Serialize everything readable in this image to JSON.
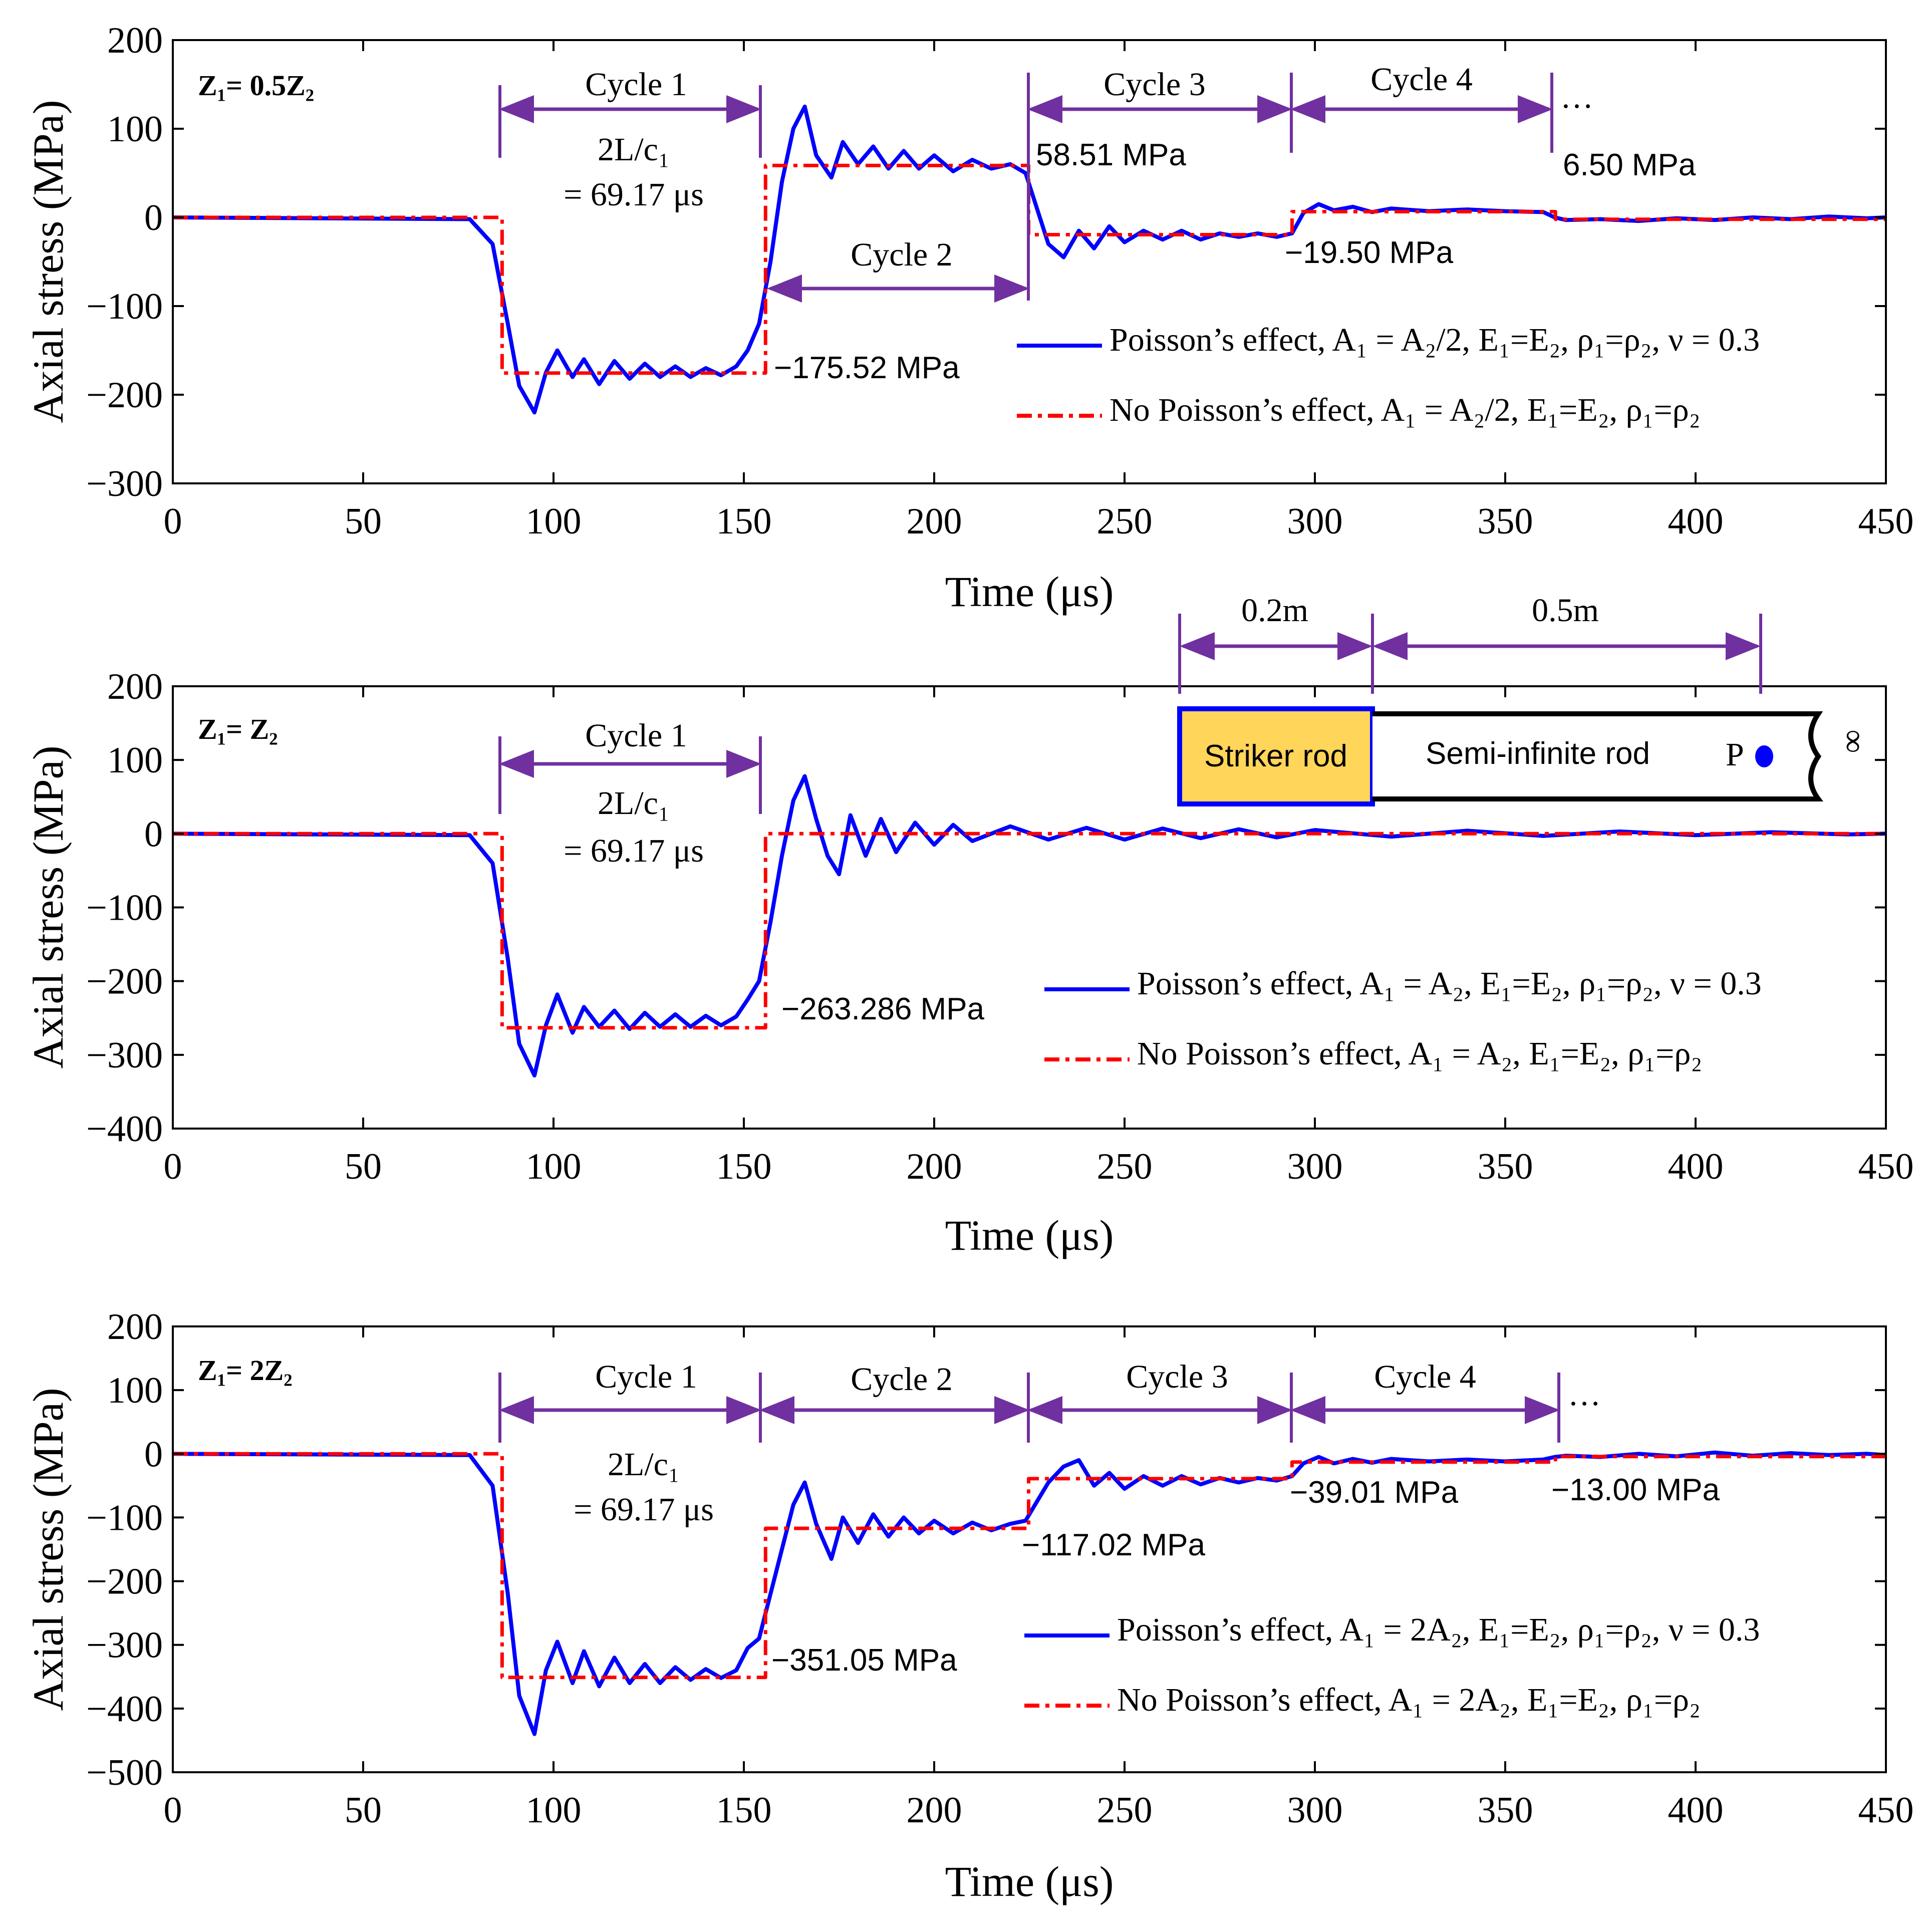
{
  "colors": {
    "poisson": "#0000ff",
    "no_poisson": "#ff0000",
    "arrow": "#7030a0",
    "striker_fill": "#ffd55a",
    "striker_border": "#0000ff",
    "axis": "#000000"
  },
  "inset": {
    "dim_left": "0.2m",
    "dim_right": "0.5m",
    "striker_label": "Striker rod",
    "rod_label": "Semi-infinite rod",
    "point_label": "P",
    "infinity_symbol": "∞"
  },
  "chart_data": [
    {
      "type": "line",
      "panel_label": "Z₁= 0.5Z₂",
      "title": "",
      "xlabel": "Time (μs)",
      "ylabel": "Axial stress (MPa)",
      "xlim": [
        0,
        450
      ],
      "ylim": [
        -300,
        200
      ],
      "xticks": [
        0,
        50,
        100,
        150,
        200,
        250,
        300,
        350,
        400,
        450
      ],
      "yticks": [
        -300,
        -200,
        -100,
        0,
        100,
        200
      ],
      "series": [
        {
          "name": "No Poisson’s effect, A₁ = A₂/2, E₁=E₂, ρ₁=ρ₂",
          "style": "dashdot",
          "color": "#ff0000",
          "x": [
            0,
            86.5,
            86.5,
            155.7,
            155.7,
            224.8,
            224.8,
            294.0,
            294.0,
            363.2,
            363.2,
            450
          ],
          "values": [
            0,
            0,
            -175.52,
            -175.52,
            58.51,
            58.51,
            -19.5,
            -19.5,
            6.5,
            6.5,
            -2.17,
            -2.17
          ]
        },
        {
          "name": "Poisson’s effect, A₁ = A₂/2, E₁=E₂, ρ₁=ρ₂, ν = 0.3",
          "style": "solid",
          "color": "#0000ff",
          "x": [
            0,
            78,
            84,
            88,
            91,
            95,
            98,
            101,
            105,
            108,
            112,
            116,
            120,
            124,
            128,
            132,
            136,
            140,
            144,
            148,
            151,
            154,
            157,
            160,
            163,
            166,
            169,
            173,
            176,
            180,
            184,
            188,
            192,
            196,
            200,
            205,
            210,
            215,
            220,
            224,
            227,
            230,
            234,
            238,
            242,
            246,
            250,
            255,
            260,
            265,
            270,
            275,
            280,
            285,
            290,
            294,
            297,
            301,
            305,
            310,
            315,
            320,
            330,
            340,
            350,
            360,
            363,
            366,
            375,
            385,
            395,
            405,
            415,
            425,
            435,
            445,
            450
          ],
          "values": [
            0,
            -2,
            -30,
            -120,
            -190,
            -220,
            -175,
            -150,
            -180,
            -160,
            -188,
            -162,
            -182,
            -165,
            -180,
            -168,
            -180,
            -170,
            -178,
            -168,
            -150,
            -120,
            -50,
            40,
            100,
            125,
            70,
            45,
            85,
            60,
            80,
            55,
            75,
            55,
            70,
            52,
            65,
            55,
            60,
            50,
            10,
            -30,
            -45,
            -15,
            -35,
            -10,
            -28,
            -15,
            -25,
            -15,
            -25,
            -18,
            -22,
            -18,
            -22,
            -18,
            5,
            15,
            8,
            12,
            6,
            10,
            7,
            9,
            7,
            6,
            0,
            -3,
            -2,
            -4,
            -1,
            -3,
            0,
            -2,
            1,
            -1,
            0
          ]
        }
      ],
      "annotations": {
        "cycles": [
          "Cycle 1",
          "Cycle 2",
          "Cycle 3",
          "Cycle 4"
        ],
        "ellipsis": "…",
        "period_line1": "2L/c₁",
        "period_line2": "= 69.17 μs",
        "values": [
          "58.51 MPa",
          "6.50 MPa",
          "−19.50 MPa",
          "−175.52 MPa"
        ]
      }
    },
    {
      "type": "line",
      "panel_label": "Z₁= Z₂",
      "title": "",
      "xlabel": "Time (μs)",
      "ylabel": "Axial stress (MPa)",
      "xlim": [
        0,
        450
      ],
      "ylim": [
        -400,
        200
      ],
      "xticks": [
        0,
        50,
        100,
        150,
        200,
        250,
        300,
        350,
        400,
        450
      ],
      "yticks": [
        -400,
        -300,
        -200,
        -100,
        0,
        100,
        200
      ],
      "series": [
        {
          "name": "No Poisson’s effect, A₁ = A₂, E₁=E₂, ρ₁=ρ₂",
          "style": "dashdot",
          "color": "#ff0000",
          "x": [
            0,
            86.5,
            86.5,
            155.7,
            155.7,
            450
          ],
          "values": [
            0,
            0,
            -263.286,
            -263.286,
            0,
            0
          ]
        },
        {
          "name": "Poisson’s effect, A₁ = A₂, E₁=E₂, ρ₁=ρ₂, ν = 0.3",
          "style": "solid",
          "color": "#0000ff",
          "x": [
            0,
            78,
            84,
            88,
            91,
            95,
            98,
            101,
            105,
            108,
            112,
            116,
            120,
            124,
            128,
            132,
            136,
            140,
            144,
            148,
            151,
            154,
            157,
            160,
            163,
            166,
            169,
            172,
            175,
            178,
            182,
            186,
            190,
            195,
            200,
            205,
            210,
            220,
            230,
            240,
            250,
            260,
            270,
            280,
            290,
            300,
            320,
            340,
            360,
            380,
            400,
            420,
            440,
            450
          ],
          "values": [
            0,
            -2,
            -40,
            -170,
            -285,
            -328,
            -260,
            -218,
            -270,
            -235,
            -262,
            -240,
            -265,
            -243,
            -262,
            -245,
            -262,
            -247,
            -260,
            -248,
            -225,
            -200,
            -120,
            -30,
            45,
            78,
            20,
            -30,
            -55,
            25,
            -30,
            20,
            -25,
            15,
            -15,
            12,
            -10,
            10,
            -8,
            8,
            -8,
            7,
            -6,
            6,
            -5,
            5,
            -4,
            4,
            -3,
            3,
            -2,
            2,
            -1,
            0
          ]
        }
      ],
      "annotations": {
        "cycles": [
          "Cycle 1"
        ],
        "period_line1": "2L/c₁",
        "period_line2": "= 69.17 μs",
        "values": [
          "−263.286 MPa"
        ]
      }
    },
    {
      "type": "line",
      "panel_label": "Z₁= 2Z₂",
      "title": "",
      "xlabel": "Time (μs)",
      "ylabel": "Axial stress (MPa)",
      "xlim": [
        0,
        450
      ],
      "ylim": [
        -500,
        200
      ],
      "xticks": [
        0,
        50,
        100,
        150,
        200,
        250,
        300,
        350,
        400,
        450
      ],
      "yticks": [
        -500,
        -400,
        -300,
        -200,
        -100,
        0,
        100,
        200
      ],
      "series": [
        {
          "name": "No Poisson’s effect, A₁ = 2A₂, E₁=E₂, ρ₁=ρ₂",
          "style": "dashdot",
          "color": "#ff0000",
          "x": [
            0,
            86.5,
            86.5,
            155.7,
            155.7,
            224.8,
            224.8,
            294.0,
            294.0,
            363.2,
            363.2,
            450
          ],
          "values": [
            0,
            0,
            -351.05,
            -351.05,
            -117.02,
            -117.02,
            -39.01,
            -39.01,
            -13.0,
            -13.0,
            -4.33,
            -4.33
          ]
        },
        {
          "name": "Poisson’s effect, A₁ = 2A₂, E₁=E₂, ρ₁=ρ₂, ν = 0.3",
          "style": "solid",
          "color": "#0000ff",
          "x": [
            0,
            78,
            84,
            88,
            91,
            95,
            98,
            101,
            105,
            108,
            112,
            116,
            120,
            124,
            128,
            132,
            136,
            140,
            144,
            148,
            151,
            154,
            157,
            160,
            163,
            166,
            169,
            173,
            176,
            180,
            184,
            188,
            192,
            196,
            200,
            205,
            210,
            215,
            220,
            224,
            227,
            230,
            234,
            238,
            242,
            246,
            250,
            255,
            260,
            265,
            270,
            275,
            280,
            285,
            290,
            294,
            297,
            301,
            305,
            310,
            315,
            320,
            330,
            340,
            350,
            360,
            363,
            366,
            375,
            385,
            395,
            405,
            415,
            425,
            435,
            445,
            450
          ],
          "values": [
            0,
            -2,
            -50,
            -220,
            -380,
            -440,
            -340,
            -295,
            -360,
            -310,
            -365,
            -320,
            -360,
            -330,
            -360,
            -335,
            -355,
            -338,
            -352,
            -340,
            -305,
            -290,
            -220,
            -150,
            -80,
            -45,
            -110,
            -165,
            -100,
            -140,
            -95,
            -130,
            -100,
            -125,
            -105,
            -125,
            -108,
            -120,
            -110,
            -105,
            -75,
            -45,
            -20,
            -10,
            -50,
            -30,
            -55,
            -35,
            -50,
            -35,
            -48,
            -38,
            -45,
            -38,
            -42,
            -35,
            -15,
            -5,
            -15,
            -8,
            -14,
            -8,
            -12,
            -9,
            -12,
            -9,
            -5,
            -3,
            -5,
            0,
            -4,
            2,
            -3,
            1,
            -2,
            0,
            -2
          ]
        }
      ],
      "annotations": {
        "cycles": [
          "Cycle 1",
          "Cycle 2",
          "Cycle 3",
          "Cycle 4"
        ],
        "ellipsis": "…",
        "period_line1": "2L/c₁",
        "period_line2": "= 69.17 μs",
        "values": [
          "−117.02 MPa",
          "−39.01 MPa",
          "−13.00 MPa",
          "−351.05 MPa"
        ]
      }
    }
  ]
}
